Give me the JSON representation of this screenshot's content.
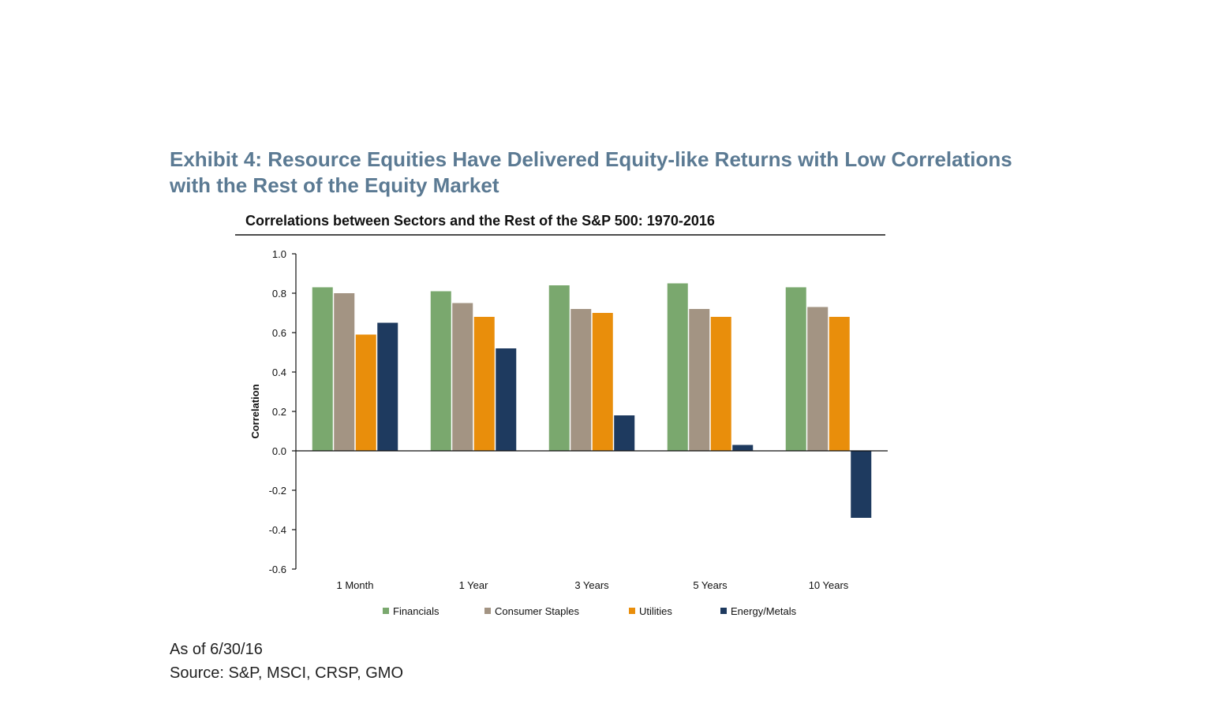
{
  "exhibit": {
    "title": "Exhibit 4: Resource Equities Have Delivered Equity-like Returns with Low Correlations with the Rest of the Equity Market"
  },
  "chart_data": {
    "type": "bar",
    "title": "Correlations between Sectors and the Rest of the S&P 500: 1970-2016",
    "xlabel": "",
    "ylabel": "Correlation",
    "ylim": [
      -0.6,
      1.0
    ],
    "yticks": [
      "1.0",
      "0.8",
      "0.6",
      "0.4",
      "0.2",
      "0.0",
      "-0.2",
      "-0.4",
      "-0.6"
    ],
    "grid": false,
    "legend_position": "bottom",
    "categories": [
      "1 Month",
      "1 Year",
      "3 Years",
      "5 Years",
      "10 Years"
    ],
    "series": [
      {
        "name": "Financials",
        "color": "#7aa86e",
        "values": [
          0.83,
          0.81,
          0.84,
          0.85,
          0.83
        ]
      },
      {
        "name": "Consumer Staples",
        "color": "#a39483",
        "values": [
          0.8,
          0.75,
          0.72,
          0.72,
          0.73
        ]
      },
      {
        "name": "Utilities",
        "color": "#e98e0b",
        "values": [
          0.59,
          0.68,
          0.7,
          0.68,
          0.68
        ]
      },
      {
        "name": "Energy/Metals",
        "color": "#1e3a5f",
        "values": [
          0.65,
          0.52,
          0.18,
          0.03,
          -0.34
        ]
      }
    ]
  },
  "footnote": {
    "as_of": "As of 6/30/16",
    "source": "Source: S&P, MSCI, CRSP, GMO"
  }
}
